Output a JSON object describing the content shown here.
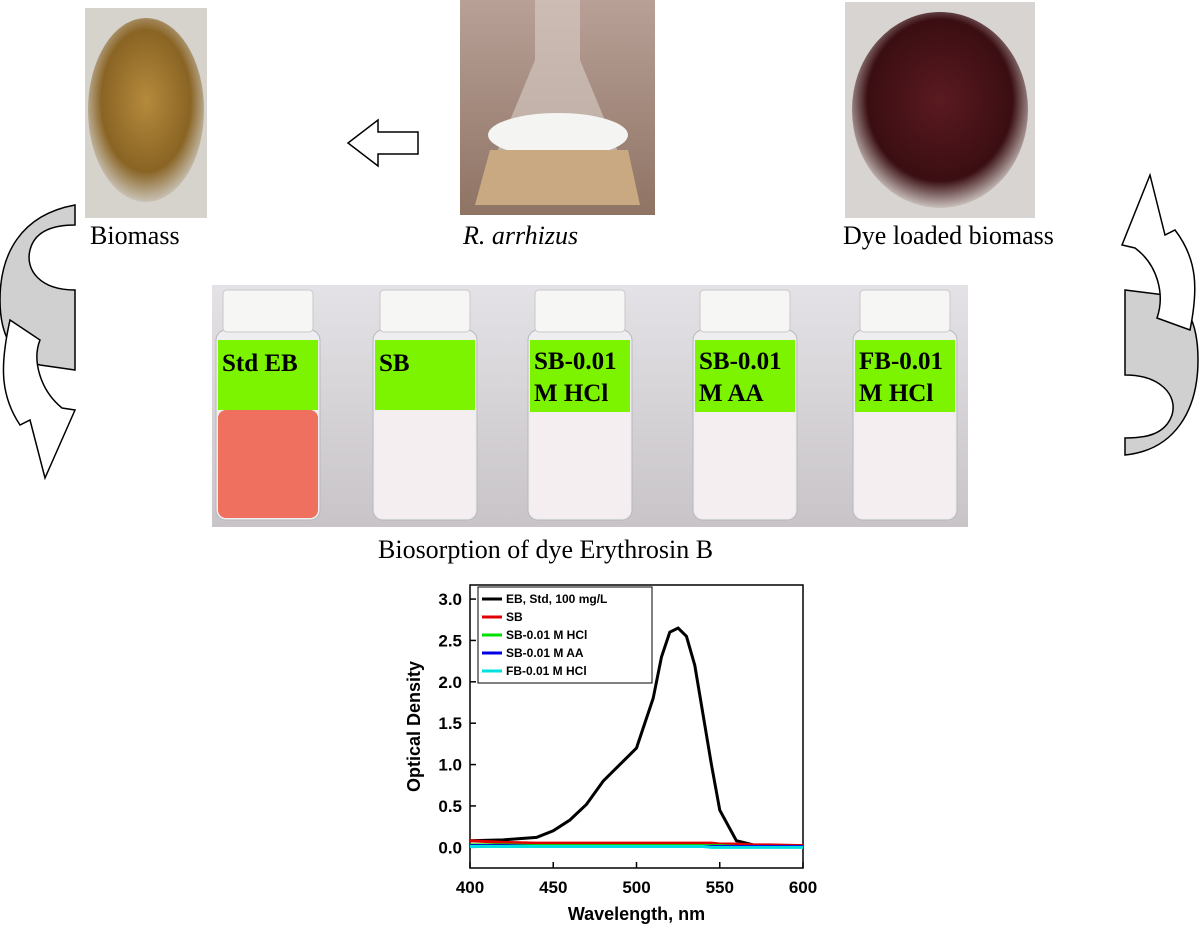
{
  "captions": {
    "biomass": "Biomass",
    "organism": "R. arrhizus",
    "dye_loaded": "Dye loaded biomass",
    "vials": "Biosorption of dye Erythrosin B"
  },
  "vial_labels": [
    [
      "Std EB"
    ],
    [
      "SB"
    ],
    [
      "SB-0.01",
      "M HCl"
    ],
    [
      "SB-0.01",
      "M AA"
    ],
    [
      "FB-0.01",
      "M HCl"
    ]
  ],
  "chart_data": {
    "type": "line",
    "xlabel": "Wavelength, nm",
    "ylabel": "Optical Density",
    "x": [
      400,
      420,
      440,
      450,
      460,
      470,
      480,
      490,
      500,
      510,
      515,
      520,
      525,
      530,
      535,
      540,
      545,
      550,
      560,
      570,
      580,
      600
    ],
    "series": [
      {
        "name": "EB, Std, 100 mg/L",
        "color": "#000000",
        "values": [
          0.08,
          0.09,
          0.12,
          0.2,
          0.33,
          0.52,
          0.8,
          1.0,
          1.2,
          1.8,
          2.3,
          2.6,
          2.65,
          2.55,
          2.2,
          1.6,
          1.0,
          0.45,
          0.08,
          0.03,
          0.02,
          0.02
        ]
      },
      {
        "name": "SB",
        "color": "#e00000",
        "values": [
          0.08,
          0.06,
          0.05,
          0.05,
          0.05,
          0.05,
          0.05,
          0.05,
          0.05,
          0.05,
          0.05,
          0.05,
          0.05,
          0.05,
          0.05,
          0.05,
          0.05,
          0.04,
          0.04,
          0.03,
          0.03,
          0.02
        ]
      },
      {
        "name": "SB-0.01 M HCl",
        "color": "#00e000",
        "values": [
          0.03,
          0.03,
          0.02,
          0.02,
          0.02,
          0.02,
          0.02,
          0.02,
          0.02,
          0.02,
          0.02,
          0.02,
          0.02,
          0.02,
          0.02,
          0.02,
          0.02,
          0.02,
          0.01,
          0.01,
          0.01,
          0.01
        ]
      },
      {
        "name": "SB-0.01 M AA",
        "color": "#0000e0",
        "values": [
          0.02,
          0.02,
          0.01,
          0.01,
          0.01,
          0.01,
          0.01,
          0.01,
          0.01,
          0.01,
          0.01,
          0.01,
          0.01,
          0.01,
          0.01,
          0.01,
          0.01,
          0.01,
          0.01,
          0.01,
          0.01,
          0.01
        ]
      },
      {
        "name": "FB-0.01 M HCl",
        "color": "#00e0e0",
        "values": [
          0.01,
          0.01,
          0.01,
          0.01,
          0.01,
          0.01,
          0.01,
          0.01,
          0.01,
          0.01,
          0.01,
          0.01,
          0.01,
          0.01,
          0.01,
          0.01,
          0.0,
          0.0,
          0.0,
          0.0,
          0.0,
          0.0
        ]
      }
    ],
    "xlim": [
      400,
      600
    ],
    "xticks": [
      400,
      450,
      500,
      550,
      600
    ],
    "ylim": [
      -0.25,
      3.17
    ],
    "yticks": [
      {
        "value": 0,
        "label": "0.0"
      },
      {
        "value": 0.5,
        "label": "0.5"
      },
      {
        "value": 1,
        "label": "1.0"
      },
      {
        "value": 1.5,
        "label": "1.5"
      },
      {
        "value": 2,
        "label": "2.0"
      },
      {
        "value": 2.5,
        "label": "2.5"
      },
      {
        "value": 3,
        "label": "3.0"
      }
    ],
    "legend": "upper left"
  }
}
